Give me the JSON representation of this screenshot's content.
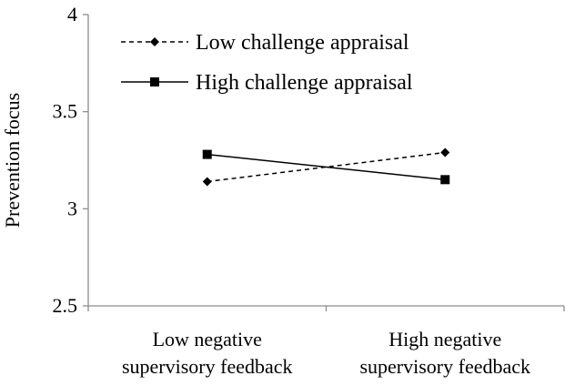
{
  "chart_data": {
    "type": "line",
    "title": "",
    "ylabel": "Prevention focus",
    "xlabel": "",
    "categories": [
      [
        "Low negative",
        "supervisory feedback"
      ],
      [
        "High negative",
        "supervisory feedback"
      ]
    ],
    "ylim": [
      2.5,
      4
    ],
    "yticks": [
      2.5,
      3,
      3.5,
      4
    ],
    "ytick_labels": [
      "2.5",
      "3",
      "3.5",
      "4"
    ],
    "grid": false,
    "legend_position": "top-left",
    "series": [
      {
        "name": "Low challenge appraisal",
        "values": [
          3.14,
          3.29
        ],
        "line_style": "dashed",
        "marker": "diamond",
        "color": "#000000"
      },
      {
        "name": "High challenge appraisal",
        "values": [
          3.28,
          3.15
        ],
        "line_style": "solid",
        "marker": "square",
        "color": "#000000"
      }
    ]
  }
}
